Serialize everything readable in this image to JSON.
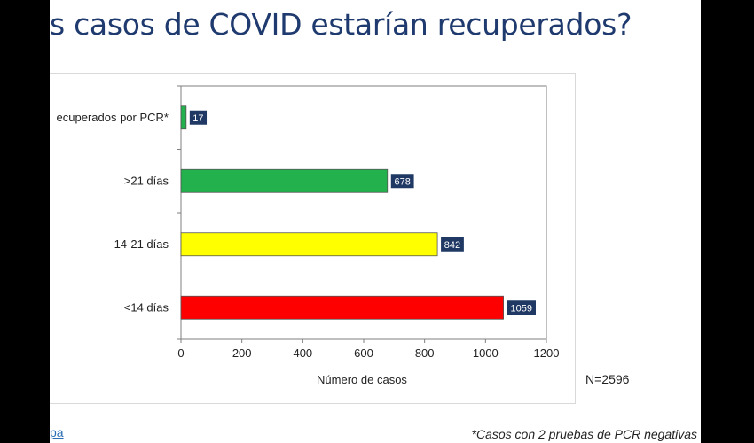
{
  "slide": {
    "title": "s casos de COVID estarían recuperados?",
    "footer_link": "pa",
    "footnote": "*Casos con 2 pruebas de PCR negativas"
  },
  "chart_data": {
    "type": "bar",
    "orientation": "horizontal",
    "categories": [
      "ecuperados por PCR*",
      ">21 días",
      "14-21 días",
      "<14 días"
    ],
    "values": [
      17,
      678,
      842,
      1059
    ],
    "colors": [
      "#22b14c",
      "#22b14c",
      "#ffff00",
      "#ff0000"
    ],
    "label_bg": "#1f3864",
    "xlabel": "Número de casos",
    "xlim": [
      0,
      1200
    ],
    "xticks": [
      0,
      200,
      400,
      600,
      800,
      1000,
      1200
    ],
    "note": "N=2596",
    "grid": false,
    "legend": "none"
  }
}
